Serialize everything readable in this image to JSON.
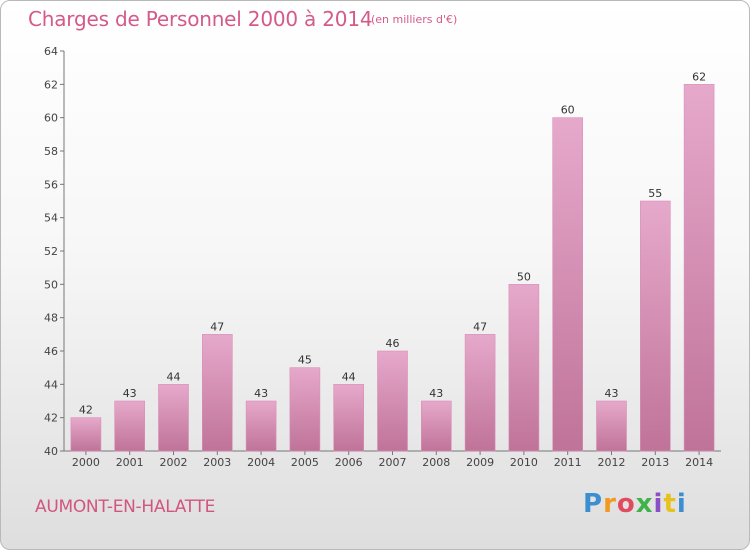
{
  "header": {
    "title": "Charges de Personnel 2000 à 2014",
    "subtitle": "(en milliers d'€)"
  },
  "footer": {
    "commune": "AUMONT-EN-HALATTE",
    "logo_letters": [
      "P",
      "r",
      "o",
      "x",
      "i",
      "t",
      "i"
    ],
    "logo_colors": [
      "#3b8fd1",
      "#f29a1f",
      "#e24b5f",
      "#3fb24a",
      "#8a4fc4",
      "#e8c21c",
      "#3b8fd1"
    ]
  },
  "colors": {
    "bar_top": "#e6a9cb",
    "bar_bottom": "#c07399",
    "bar_edge": "#d98fb6",
    "title": "#d45a8a"
  },
  "chart_data": {
    "type": "bar",
    "title": "Charges de Personnel 2000 à 2014",
    "subtitle": "(en milliers d'€)",
    "categories": [
      "2000",
      "2001",
      "2002",
      "2003",
      "2004",
      "2005",
      "2006",
      "2007",
      "2008",
      "2009",
      "2010",
      "2011",
      "2012",
      "2013",
      "2014"
    ],
    "values": [
      42,
      43,
      44,
      47,
      43,
      45,
      44,
      46,
      43,
      47,
      50,
      60,
      43,
      55,
      62
    ],
    "ylim": [
      40,
      64
    ],
    "yticks": [
      40,
      42,
      44,
      46,
      48,
      50,
      52,
      54,
      56,
      58,
      60,
      62,
      64
    ],
    "xlabel": "",
    "ylabel": "",
    "grid": false,
    "data_labels": true
  }
}
